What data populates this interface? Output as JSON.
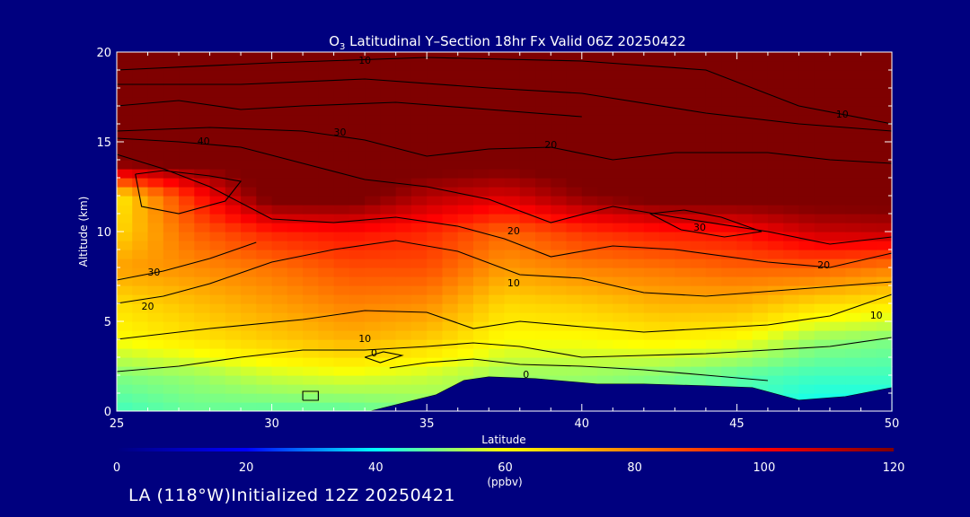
{
  "chart_data": {
    "type": "heatmap",
    "title_species": "O",
    "title_subscript": "3",
    "title_rest": " Latitudinal Y–Section 18hr  Fx Valid 06Z 20250422",
    "xlabel": "Latitude",
    "ylabel": "Altitude (km)",
    "xlim": [
      25,
      50
    ],
    "ylim": [
      0,
      20
    ],
    "x_ticks": [
      "25",
      "30",
      "35",
      "40",
      "45",
      "50"
    ],
    "y_ticks": [
      "0",
      "5",
      "10",
      "15",
      "20"
    ],
    "colorbar": {
      "ticks": [
        "0",
        "20",
        "40",
        "60",
        "80",
        "100",
        "120"
      ],
      "range": [
        0,
        120
      ],
      "unit_label": "(ppbv)",
      "colors": [
        "#00007f",
        "#0000ff",
        "#00ffff",
        "#ffff00",
        "#ff7f00",
        "#ff0000",
        "#7f0000"
      ]
    },
    "terrain_color": "#00007f",
    "terrain": [
      [
        25,
        0
      ],
      [
        33.2,
        0
      ],
      [
        35.3,
        0.9
      ],
      [
        36.2,
        1.7
      ],
      [
        37,
        1.9
      ],
      [
        38.5,
        1.8
      ],
      [
        40.5,
        1.5
      ],
      [
        42,
        1.5
      ],
      [
        44,
        1.4
      ],
      [
        45.5,
        1.3
      ],
      [
        47,
        0.6
      ],
      [
        48.5,
        0.8
      ],
      [
        50,
        1.3
      ]
    ],
    "contour_levels": [
      "0",
      "10",
      "20",
      "30",
      "40"
    ],
    "contour_labels": [
      {
        "text": "10",
        "x": 33.0,
        "y": 4.0
      },
      {
        "text": "20",
        "x": 26.0,
        "y": 5.8
      },
      {
        "text": "30",
        "x": 26.2,
        "y": 7.7
      },
      {
        "text": "40",
        "x": 27.8,
        "y": 15.0
      },
      {
        "text": "30",
        "x": 32.2,
        "y": 15.5
      },
      {
        "text": "10",
        "x": 33.0,
        "y": 19.5
      },
      {
        "text": "20",
        "x": 39.0,
        "y": 14.8
      },
      {
        "text": "20",
        "x": 37.8,
        "y": 10.0
      },
      {
        "text": "10",
        "x": 37.8,
        "y": 7.1
      },
      {
        "text": "0",
        "x": 33.3,
        "y": 3.2
      },
      {
        "text": "0",
        "x": 38.2,
        "y": 2.0
      },
      {
        "text": "30",
        "x": 43.8,
        "y": 10.2
      },
      {
        "text": "20",
        "x": 47.8,
        "y": 8.1
      },
      {
        "text": "10",
        "x": 48.4,
        "y": 16.5
      },
      {
        "text": "10",
        "x": 49.5,
        "y": 5.3
      }
    ],
    "ozone_field": {
      "lat": [
        25,
        27.5,
        30,
        32.5,
        35,
        37.5,
        40,
        42.5,
        45,
        47.5,
        50
      ],
      "alt": [
        0,
        2,
        4,
        6,
        8,
        10,
        12,
        14,
        16,
        18,
        20
      ],
      "values_ppbv": [
        [
          45,
          48,
          47,
          47,
          50,
          52,
          50,
          49,
          45,
          40,
          40
        ],
        [
          50,
          52,
          56,
          58,
          56,
          52,
          52,
          50,
          47,
          45,
          45
        ],
        [
          60,
          64,
          68,
          72,
          68,
          60,
          60,
          62,
          60,
          52,
          50
        ],
        [
          65,
          70,
          75,
          80,
          78,
          66,
          68,
          72,
          72,
          66,
          63
        ],
        [
          75,
          78,
          82,
          88,
          88,
          76,
          80,
          82,
          85,
          85,
          80
        ],
        [
          66,
          85,
          95,
          98,
          94,
          84,
          92,
          96,
          98,
          108,
          110
        ],
        [
          62,
          95,
          125,
          125,
          112,
          106,
          118,
          125,
          125,
          125,
          125
        ],
        [
          125,
          125,
          125,
          125,
          125,
          125,
          125,
          125,
          125,
          125,
          125
        ],
        [
          125,
          125,
          125,
          125,
          125,
          125,
          125,
          125,
          125,
          125,
          125
        ],
        [
          125,
          125,
          125,
          125,
          125,
          125,
          125,
          125,
          125,
          125,
          125
        ],
        [
          125,
          125,
          125,
          125,
          125,
          125,
          125,
          125,
          125,
          125,
          125
        ]
      ]
    }
  },
  "footer": {
    "text": "LA (118°W)Initialized 12Z 20250421"
  }
}
